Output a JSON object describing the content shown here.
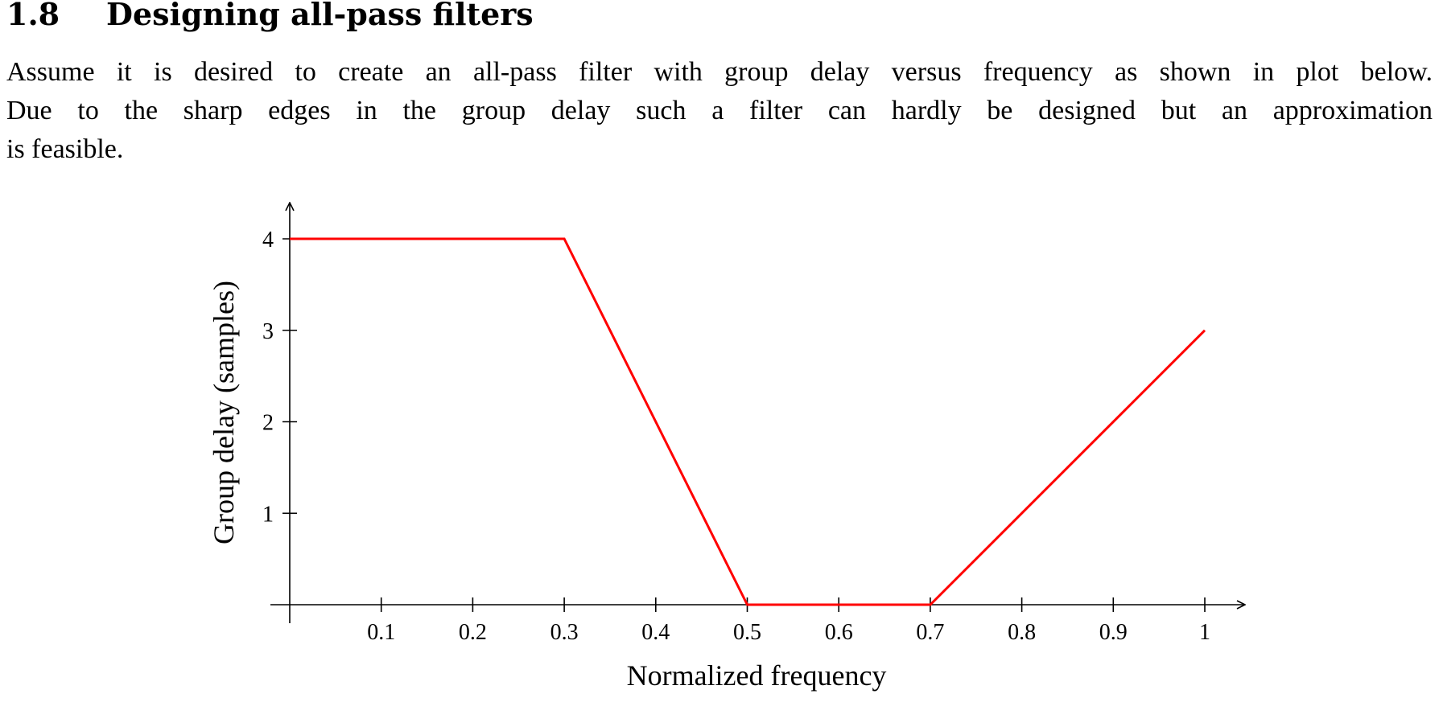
{
  "section": {
    "number": "1.8",
    "title": "Designing all-pass filters"
  },
  "paragraph": {
    "line1": "Assume it is desired to create an all-pass filter with group delay versus frequency as shown in plot below.",
    "line2": "Due to the sharp edges in the group delay such a filter can hardly be designed but an approximation",
    "line3": "is feasible."
  },
  "chart_data": {
    "type": "line",
    "xlabel": "Normalized frequency",
    "ylabel": "Group delay (samples)",
    "xlim": [
      0,
      1
    ],
    "ylim": [
      0,
      4
    ],
    "x_ticks": [
      0.1,
      0.2,
      0.3,
      0.4,
      0.5,
      0.6,
      0.7,
      0.8,
      0.9,
      1
    ],
    "x_tick_labels": [
      "0.1",
      "0.2",
      "0.3",
      "0.4",
      "0.5",
      "0.6",
      "0.7",
      "0.8",
      "0.9",
      "1"
    ],
    "y_ticks": [
      1,
      2,
      3,
      4
    ],
    "y_tick_labels": [
      "1",
      "2",
      "3",
      "4"
    ],
    "grid": false,
    "series": [
      {
        "color": "#ff0000",
        "x": [
          0,
          0.3,
          0.5,
          0.7,
          1
        ],
        "y": [
          4,
          4,
          0,
          0,
          3
        ]
      }
    ]
  }
}
